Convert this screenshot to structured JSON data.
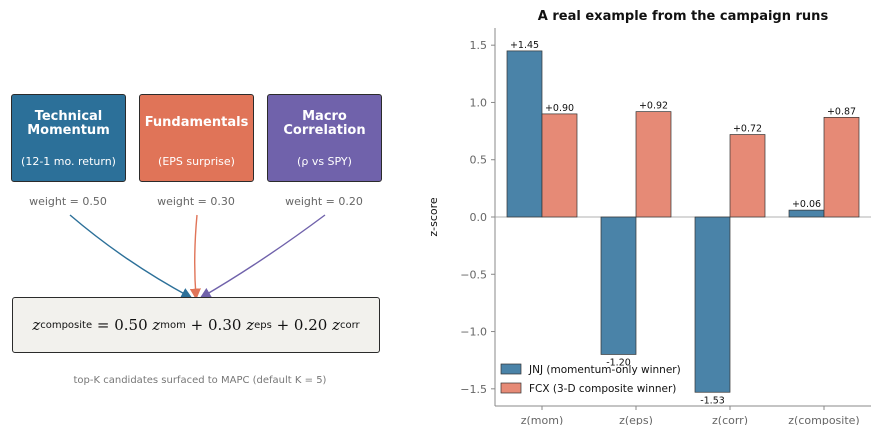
{
  "diagram": {
    "factors": [
      {
        "title": "Technical Momentum",
        "subtitle": "(12-1 mo. return)",
        "weight": "weight = 0.50",
        "color": "#2c7099"
      },
      {
        "title": "Fundamentals",
        "subtitle": "(EPS surprise)",
        "weight": "weight = 0.30",
        "color": "#e07458"
      },
      {
        "title": "Macro Correlation",
        "subtitle": "(ρ vs SPY)",
        "weight": "weight = 0.20",
        "color": "#7062ab"
      }
    ],
    "formula": {
      "lhs": "z",
      "lhs_sub": "composite",
      "eq": " = 0.50 ",
      "t1": "z",
      "t1_sub": "mom",
      "p1": " + 0.30 ",
      "t2": "z",
      "t2_sub": "eps",
      "p2": " + 0.20 ",
      "t3": "z",
      "t3_sub": "corr"
    },
    "caption": "top-K candidates surfaced to MAPC (default K = 5)"
  },
  "chart_data": {
    "type": "bar",
    "title": "A real example from the campaign runs",
    "ylabel": "z-score",
    "xlabel": "",
    "categories": [
      "z(mom)",
      "z(eps)",
      "z(corr)",
      "z(composite)"
    ],
    "ylim": [
      -1.65,
      1.65
    ],
    "yticks": [
      -1.5,
      -1.0,
      -0.5,
      0.0,
      0.5,
      1.0,
      1.5
    ],
    "ytick_labels": [
      "−1.5",
      "−1.0",
      "−0.5",
      "0.0",
      "0.5",
      "1.0",
      "1.5"
    ],
    "series": [
      {
        "name": "JNJ (momentum-only winner)",
        "color": "#4a83a8",
        "values": [
          1.45,
          -1.2,
          -1.53,
          0.06
        ],
        "labels": [
          "+1.45",
          "-1.20",
          "-1.53",
          "+0.06"
        ]
      },
      {
        "name": "FCX (3-D composite winner)",
        "color": "#e68a76",
        "values": [
          0.9,
          0.92,
          0.72,
          0.87
        ],
        "labels": [
          "+0.90",
          "+0.92",
          "+0.72",
          "+0.87"
        ]
      }
    ],
    "legend": "lower-left",
    "grid": false
  }
}
